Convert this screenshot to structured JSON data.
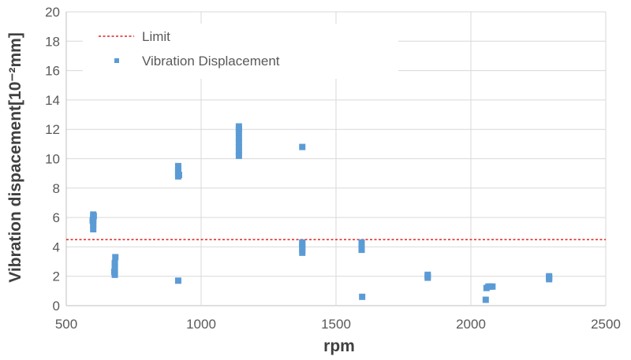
{
  "chart_data": {
    "type": "scatter",
    "xlabel": "rpm",
    "ylabel": "Vibration dispacement[10⁻²mm]",
    "xlim": [
      500,
      2500
    ],
    "ylim": [
      0,
      20
    ],
    "xticks": [
      "500",
      "1000",
      "1500",
      "2000",
      "2500"
    ],
    "yticks": [
      "0",
      "2",
      "4",
      "6",
      "8",
      "10",
      "12",
      "14",
      "16",
      "18",
      "20"
    ],
    "grid": true,
    "legend_placement": "top-left",
    "limit": {
      "name": "Limit",
      "value": 4.5,
      "color": "#e02020"
    },
    "series": [
      {
        "name": "Vibration Displacement",
        "color": "#5b9bd5",
        "points": [
          [
            600,
            5.2
          ],
          [
            600,
            5.5
          ],
          [
            600,
            5.7
          ],
          [
            600,
            5.9
          ],
          [
            600,
            6.0
          ],
          [
            600,
            6.2
          ],
          [
            598,
            5.8
          ],
          [
            602,
            6.1
          ],
          [
            680,
            2.1
          ],
          [
            680,
            2.2
          ],
          [
            680,
            2.4
          ],
          [
            680,
            2.6
          ],
          [
            680,
            2.8
          ],
          [
            680,
            2.9
          ],
          [
            682,
            3.3
          ],
          [
            678,
            2.3
          ],
          [
            915,
            8.8
          ],
          [
            915,
            9.0
          ],
          [
            915,
            9.2
          ],
          [
            915,
            9.5
          ],
          [
            918,
            8.9
          ],
          [
            915,
            1.7
          ],
          [
            1140,
            10.2
          ],
          [
            1140,
            10.5
          ],
          [
            1140,
            10.8
          ],
          [
            1140,
            11.1
          ],
          [
            1140,
            11.4
          ],
          [
            1140,
            11.8
          ],
          [
            1140,
            12.0
          ],
          [
            1140,
            12.2
          ],
          [
            1375,
            10.8
          ],
          [
            1375,
            3.6
          ],
          [
            1375,
            3.8
          ],
          [
            1375,
            4.0
          ],
          [
            1375,
            4.2
          ],
          [
            1375,
            4.3
          ],
          [
            1595,
            3.8
          ],
          [
            1595,
            4.0
          ],
          [
            1595,
            4.2
          ],
          [
            1595,
            4.3
          ],
          [
            1597,
            0.6
          ],
          [
            1840,
            1.9
          ],
          [
            1840,
            2.0
          ],
          [
            1840,
            2.1
          ],
          [
            2055,
            0.4
          ],
          [
            2058,
            1.2
          ],
          [
            2065,
            1.3
          ],
          [
            2072,
            1.3
          ],
          [
            2080,
            1.3
          ],
          [
            2290,
            1.8
          ],
          [
            2290,
            1.9
          ],
          [
            2290,
            2.0
          ]
        ]
      }
    ]
  }
}
